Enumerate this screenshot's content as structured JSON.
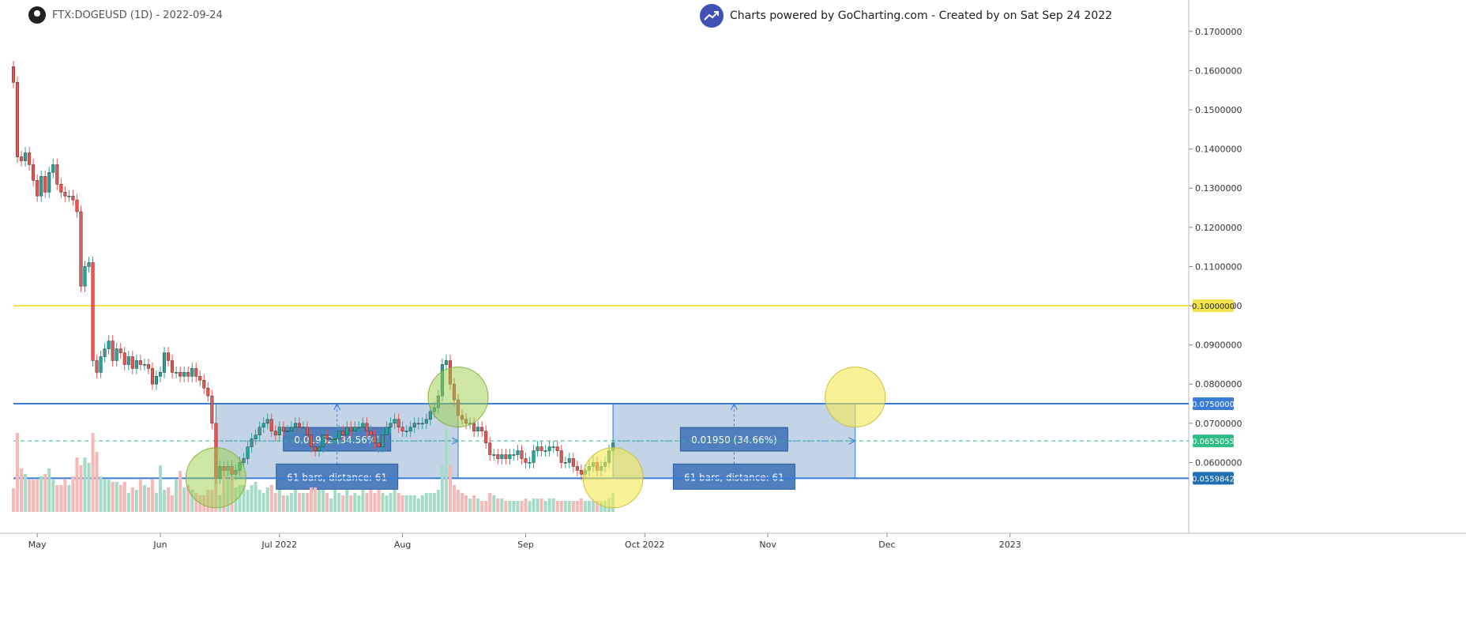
{
  "header": {
    "symbol": "FTX:DOGEUSD (1D) - 2022-09-24",
    "banner": "Charts powered by GoCharting.com - Created by  on Sat Sep 24 2022",
    "logo_icon": "gocharting-logo-icon",
    "app_icon": "app-avatar-icon"
  },
  "colors": {
    "up": "#26a69a",
    "down": "#ef5350",
    "up_volume": "#a5dcc8",
    "down_volume": "#f7b8b8",
    "yellow_line": "#f2e44a",
    "blue_line": "#3a7bd5",
    "current_price": "#2ebd85",
    "box_fill": "#b8cde3"
  },
  "chart_data": {
    "type": "candlestick",
    "symbol": "FTX:DOGEUSD",
    "interval": "1D",
    "ylim": [
      0.049,
      0.175
    ],
    "y_ticks": [
      "0.1700000",
      "0.1600000",
      "0.1500000",
      "0.1400000",
      "0.1300000",
      "0.1200000",
      "0.1100000",
      "0.1000000",
      "0.0900000",
      "0.0800000",
      "0.0700000",
      "0.0600000"
    ],
    "x_ticks": [
      "May",
      "Jun",
      "Jul 2022",
      "Aug",
      "Sep",
      "Oct 2022",
      "Nov",
      "Dec",
      "2023"
    ],
    "x_tick_dates": [
      "2022-05-01",
      "2022-06-01",
      "2022-07-01",
      "2022-08-01",
      "2022-09-01",
      "2022-10-01",
      "2022-11-01",
      "2022-12-01",
      "2023-01-01"
    ],
    "start_date": "2022-04-25",
    "end_date": "2022-09-24",
    "xlim_dates": [
      "2022-04-25",
      "2023-02-15"
    ],
    "closes": [
      0.157,
      0.138,
      0.137,
      0.139,
      0.136,
      0.132,
      0.128,
      0.133,
      0.129,
      0.134,
      0.136,
      0.131,
      0.129,
      0.128,
      0.128,
      0.127,
      0.124,
      0.105,
      0.11,
      0.111,
      0.086,
      0.083,
      0.087,
      0.089,
      0.091,
      0.086,
      0.089,
      0.088,
      0.085,
      0.087,
      0.084,
      0.086,
      0.085,
      0.085,
      0.084,
      0.08,
      0.082,
      0.083,
      0.088,
      0.086,
      0.083,
      0.083,
      0.082,
      0.083,
      0.082,
      0.084,
      0.082,
      0.081,
      0.079,
      0.077,
      0.07,
      0.056,
      0.059,
      0.058,
      0.059,
      0.057,
      0.058,
      0.06,
      0.061,
      0.064,
      0.066,
      0.067,
      0.069,
      0.07,
      0.071,
      0.068,
      0.067,
      0.069,
      0.068,
      0.068,
      0.069,
      0.07,
      0.069,
      0.069,
      0.067,
      0.064,
      0.063,
      0.064,
      0.067,
      0.066,
      0.066,
      0.066,
      0.068,
      0.067,
      0.069,
      0.068,
      0.069,
      0.069,
      0.07,
      0.068,
      0.067,
      0.065,
      0.064,
      0.067,
      0.069,
      0.07,
      0.071,
      0.069,
      0.068,
      0.068,
      0.069,
      0.07,
      0.07,
      0.07,
      0.071,
      0.073,
      0.074,
      0.077,
      0.085,
      0.086,
      0.08,
      0.076,
      0.072,
      0.071,
      0.07,
      0.07,
      0.068,
      0.069,
      0.068,
      0.065,
      0.062,
      0.062,
      0.061,
      0.062,
      0.061,
      0.062,
      0.062,
      0.063,
      0.061,
      0.06,
      0.06,
      0.063,
      0.064,
      0.063,
      0.063,
      0.064,
      0.064,
      0.063,
      0.06,
      0.06,
      0.061,
      0.059,
      0.058,
      0.057,
      0.058,
      0.059,
      0.06,
      0.058,
      0.059,
      0.06,
      0.063,
      0.065
    ],
    "volume_scale": [
      0.3,
      1.0,
      0.55,
      0.48,
      0.41,
      0.41,
      0.41,
      0.45,
      0.48,
      0.55,
      0.41,
      0.34,
      0.34,
      0.41,
      0.34,
      0.45,
      0.69,
      0.59,
      0.69,
      0.62,
      1.0,
      0.76,
      0.45,
      0.41,
      0.41,
      0.38,
      0.38,
      0.34,
      0.38,
      0.24,
      0.31,
      0.28,
      0.41,
      0.34,
      0.31,
      0.41,
      0.24,
      0.59,
      0.28,
      0.31,
      0.21,
      0.41,
      0.52,
      0.31,
      0.34,
      0.28,
      0.24,
      0.21,
      0.21,
      0.28,
      0.28,
      0.59,
      0.21,
      0.59,
      0.41,
      0.45,
      0.31,
      0.34,
      0.34,
      0.28,
      0.34,
      0.38,
      0.28,
      0.24,
      0.31,
      0.34,
      0.24,
      0.28,
      0.21,
      0.21,
      0.24,
      0.28,
      0.24,
      0.24,
      0.24,
      0.31,
      0.31,
      0.28,
      0.28,
      0.24,
      0.17,
      0.28,
      0.24,
      0.21,
      0.28,
      0.21,
      0.24,
      0.21,
      0.28,
      0.24,
      0.28,
      0.24,
      0.28,
      0.24,
      0.21,
      0.24,
      0.28,
      0.24,
      0.21,
      0.21,
      0.21,
      0.21,
      0.17,
      0.21,
      0.24,
      0.24,
      0.24,
      0.28,
      0.59,
      1.05,
      0.59,
      0.34,
      0.28,
      0.24,
      0.21,
      0.17,
      0.21,
      0.17,
      0.14,
      0.14,
      0.24,
      0.21,
      0.17,
      0.17,
      0.14,
      0.14,
      0.14,
      0.14,
      0.14,
      0.17,
      0.14,
      0.17,
      0.17,
      0.17,
      0.14,
      0.17,
      0.17,
      0.14,
      0.14,
      0.14,
      0.14,
      0.14,
      0.14,
      0.17,
      0.14,
      0.14,
      0.14,
      0.14,
      0.14,
      0.14,
      0.17,
      0.24
    ],
    "horizontal_lines": [
      {
        "price": 0.1,
        "label": "0.1000000",
        "color": "#f2e44a",
        "label_bg": "#f2e44a",
        "label_color": "#222"
      },
      {
        "price": 0.075,
        "label": "0.0750000",
        "color": "#3a7bd5",
        "label_bg": "#3a7bd5",
        "label_color": "#fff"
      },
      {
        "price": 0.0559842,
        "label": "0.0559842",
        "color": "#3a7bd5",
        "label_bg": "#1f6fb2",
        "label_color": "#fff"
      }
    ],
    "current_price": {
      "price": 0.0655055,
      "label": "0.0655055"
    },
    "measure_boxes": [
      {
        "start": "2022-06-15",
        "end": "2022-08-15",
        "low": 0.0559842,
        "high": 0.075,
        "change_text": "0.01932 (34.56%)",
        "bars_text": "61 bars,  distance: 61"
      },
      {
        "start": "2022-09-23",
        "end": "2022-11-23",
        "low": 0.0559842,
        "high": 0.075,
        "change_text": "0.01950 (34.66%)",
        "bars_text": "61 bars,  distance: 61"
      }
    ],
    "circles": [
      {
        "date": "2022-06-15",
        "price": 0.0561,
        "fill": "rgba(155,206,74,0.5)",
        "stroke": "#88b03b"
      },
      {
        "date": "2022-08-15",
        "price": 0.0767,
        "fill": "rgba(155,206,74,0.5)",
        "stroke": "#88b03b"
      },
      {
        "date": "2022-09-23",
        "price": 0.0561,
        "fill": "rgba(245,232,80,0.6)",
        "stroke": "#c9bd3b"
      },
      {
        "date": "2022-11-23",
        "price": 0.0767,
        "fill": "rgba(245,232,80,0.6)",
        "stroke": "#c9bd3b"
      }
    ]
  }
}
